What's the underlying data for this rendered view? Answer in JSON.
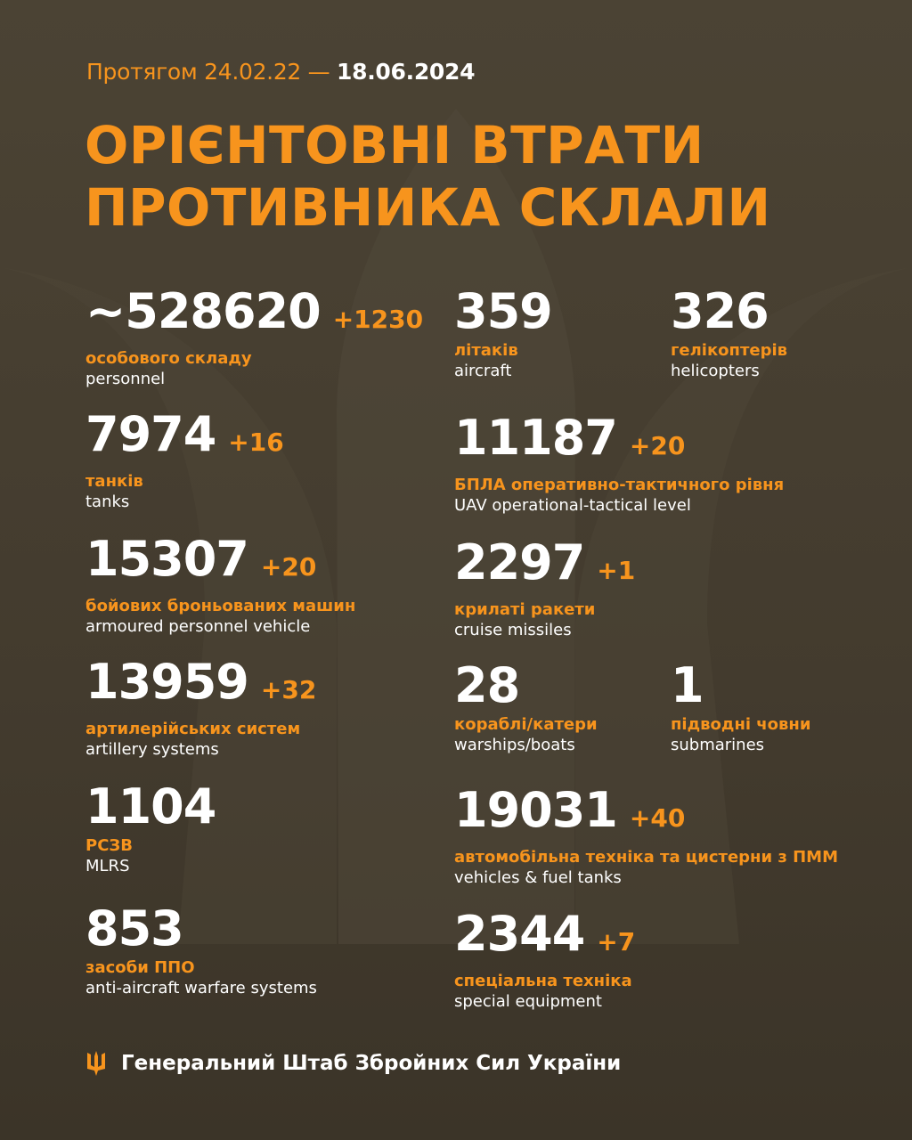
{
  "header": {
    "date_prefix": "Протягом 24.02.22 —",
    "date_end": "18.06.2024",
    "title_line1": "ОРІЄНТОВНІ ВТРАТИ",
    "title_line2": "ПРОТИВНИКА СКЛАЛИ"
  },
  "colors": {
    "accent": "#f7941d",
    "background": "#463e30",
    "text": "#ffffff"
  },
  "stats": [
    {
      "value": "~528620",
      "delta": "+1230",
      "ua": "особового складу",
      "en": "personnel"
    },
    {
      "value": "359",
      "delta": "",
      "ua": "літаків",
      "en": "aircraft"
    },
    {
      "value": "326",
      "delta": "",
      "ua": "гелікоптерів",
      "en": "helicopters"
    },
    {
      "value": "7974",
      "delta": "+16",
      "ua": "танків",
      "en": "tanks"
    },
    {
      "value": "11187",
      "delta": "+20",
      "ua": "БПЛА оперативно-тактичного рівня",
      "en": "UAV operational-tactical level"
    },
    {
      "value": "15307",
      "delta": "+20",
      "ua": "бойових броньованих машин",
      "en": "armoured personnel vehicle"
    },
    {
      "value": "2297",
      "delta": "+1",
      "ua": "крилаті ракети",
      "en": "cruise missiles"
    },
    {
      "value": "13959",
      "delta": "+32",
      "ua": "артилерійських систем",
      "en": "artillery systems"
    },
    {
      "value": "28",
      "delta": "",
      "ua": "кораблі/катери",
      "en": "warships/boats"
    },
    {
      "value": "1",
      "delta": "",
      "ua": "підводні човни",
      "en": "submarines"
    },
    {
      "value": "1104",
      "delta": "",
      "ua": "РСЗВ",
      "en": "MLRS"
    },
    {
      "value": "19031",
      "delta": "+40",
      "ua": "автомобільна техніка та цистерни з ПММ",
      "en": "vehicles & fuel tanks"
    },
    {
      "value": "853",
      "delta": "",
      "ua": "засоби ППО",
      "en": "anti-aircraft warfare systems"
    },
    {
      "value": "2344",
      "delta": "+7",
      "ua": "спеціальна техніка",
      "en": "special equipment"
    }
  ],
  "footer": {
    "icon": "trident-icon",
    "text": "Генеральний Штаб Збройних Сил України"
  }
}
